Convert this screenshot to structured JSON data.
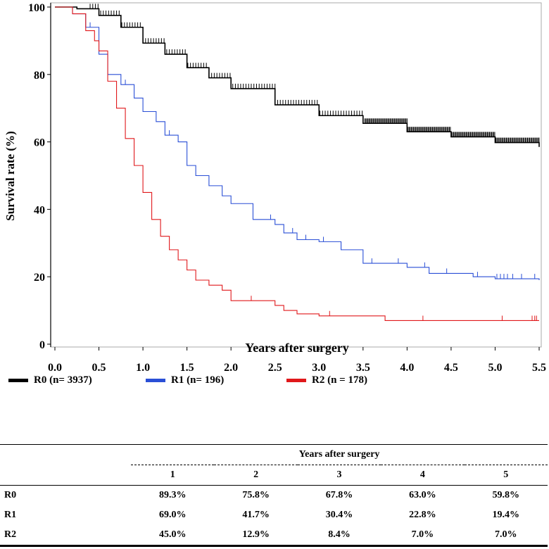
{
  "chart_data": {
    "type": "line",
    "title": "",
    "xlabel": "Years after surgery",
    "ylabel": "Survival rate (%)",
    "xlim": [
      0,
      5.5
    ],
    "ylim": [
      0,
      100
    ],
    "xticks": [
      "0.0",
      "0.5",
      "1.0",
      "1.5",
      "2.0",
      "2.5",
      "3.0",
      "3.5",
      "4.0",
      "4.5",
      "5.0",
      "5.5"
    ],
    "yticks": [
      "0",
      "20",
      "40",
      "60",
      "80",
      "100"
    ],
    "legend_position": "bottom",
    "series": [
      {
        "name": "R0 (n= 3937)",
        "color": "#000000",
        "x": [
          0,
          0.25,
          0.5,
          0.75,
          1,
          1.25,
          1.5,
          1.75,
          2,
          2.5,
          3,
          3.5,
          4,
          4.5,
          5,
          5.5
        ],
        "y": [
          100,
          99.5,
          97.5,
          94,
          89.3,
          86,
          82,
          79,
          75.8,
          71,
          67.8,
          65.5,
          63,
          61.5,
          59.8,
          58.5
        ],
        "censor_dense_from": 0.4
      },
      {
        "name": "R1 (n= 196)",
        "color": "#2a4fd6",
        "x": [
          0,
          0.2,
          0.35,
          0.5,
          0.6,
          0.75,
          0.9,
          1,
          1.15,
          1.25,
          1.4,
          1.5,
          1.6,
          1.75,
          1.9,
          2,
          2.25,
          2.5,
          2.6,
          2.75,
          3,
          3.25,
          3.5,
          4,
          4.25,
          4.75,
          5,
          5.5
        ],
        "y": [
          100,
          98,
          94,
          86,
          80,
          77,
          73,
          69,
          66,
          62,
          60,
          53,
          50,
          47,
          44,
          41.7,
          37,
          35.5,
          33,
          31,
          30.4,
          28,
          24,
          22.8,
          21,
          20,
          19.4,
          19
        ],
        "censors": [
          0.4,
          0.8,
          1.3,
          2.45,
          2.7,
          2.85,
          3.05,
          3.25,
          3.6,
          3.9,
          4.2,
          4.45,
          4.8,
          5.02,
          5.06,
          5.1,
          5.14,
          5.2,
          5.3,
          5.45
        ]
      },
      {
        "name": "R2 (n = 178)",
        "color": "#e0181b",
        "x": [
          0,
          0.2,
          0.35,
          0.45,
          0.5,
          0.6,
          0.7,
          0.8,
          0.9,
          1,
          1.1,
          1.2,
          1.3,
          1.4,
          1.5,
          1.6,
          1.75,
          1.9,
          2,
          2.5,
          2.6,
          2.75,
          3,
          3.75,
          5.5
        ],
        "y": [
          100,
          98,
          93,
          90,
          87,
          78,
          70,
          61,
          53,
          45,
          37,
          32,
          28,
          25,
          22,
          19,
          17.5,
          16,
          12.9,
          11.5,
          10,
          9,
          8.4,
          7,
          7
        ],
        "censors": [
          2.23,
          3.12,
          4.18,
          5.08,
          5.42,
          5.45,
          5.47
        ]
      }
    ]
  },
  "legend": [
    "R0 (n= 3937)",
    "R1 (n= 196)",
    "R2 (n = 178)"
  ],
  "table": {
    "header": "Years after surgery",
    "columns": [
      "1",
      "2",
      "3",
      "4",
      "5"
    ],
    "rows": [
      {
        "label": "R0",
        "values": [
          "89.3%",
          "75.8%",
          "67.8%",
          "63.0%",
          "59.8%"
        ]
      },
      {
        "label": "R1",
        "values": [
          "69.0%",
          "41.7%",
          "30.4%",
          "22.8%",
          "19.4%"
        ]
      },
      {
        "label": "R2",
        "values": [
          "45.0%",
          "12.9%",
          "8.4%",
          "7.0%",
          "7.0%"
        ]
      }
    ]
  }
}
